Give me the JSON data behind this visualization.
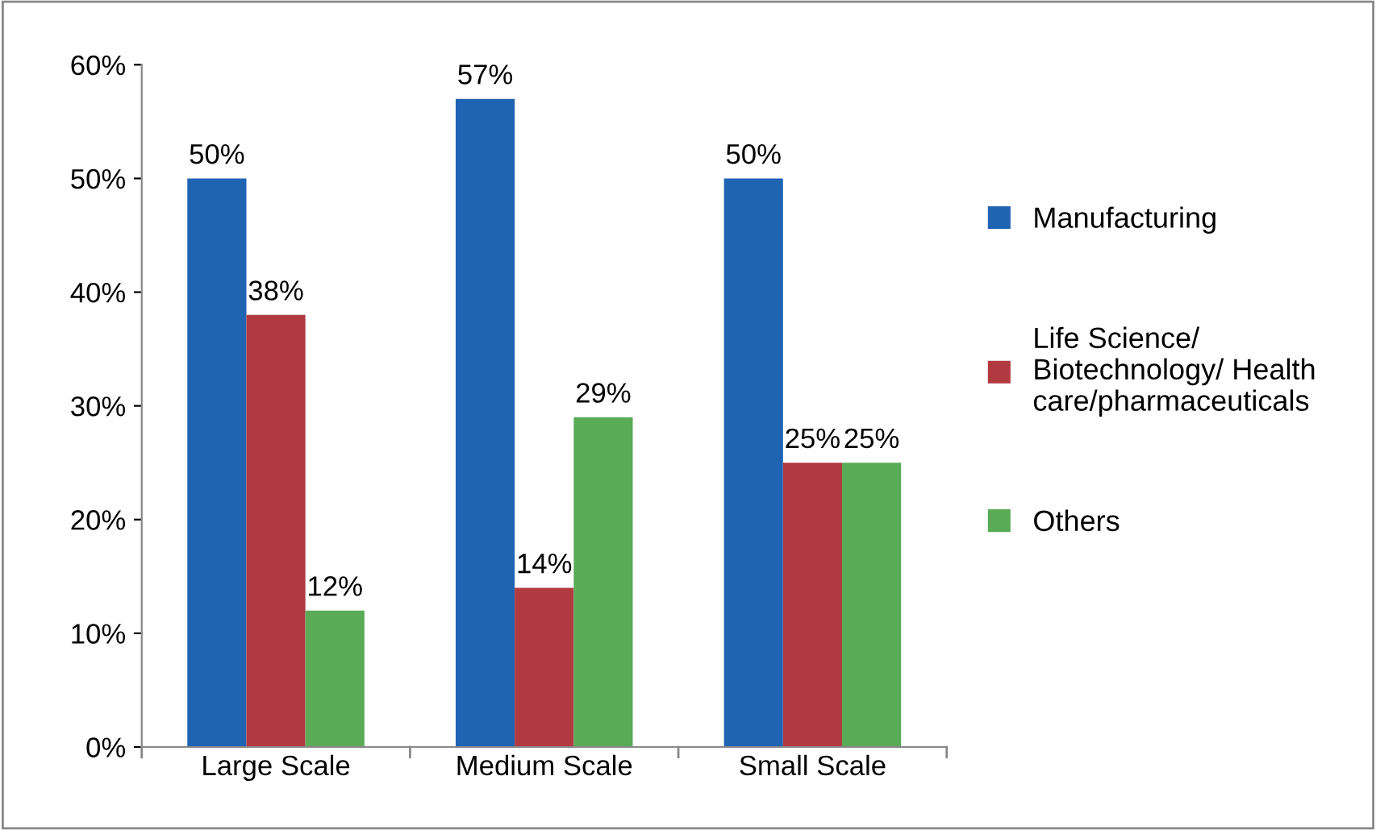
{
  "chart_data": {
    "type": "bar",
    "categories": [
      "Large Scale",
      "Medium Scale",
      "Small Scale"
    ],
    "series": [
      {
        "name": "Manufacturing",
        "color": "#1f63b3",
        "values": [
          50,
          57,
          50
        ],
        "value_labels": [
          "50%",
          "57%",
          "50%"
        ]
      },
      {
        "name": "Life Science/ Biotechnology/ Health care/pharmaceuticals",
        "color": "#b13a41",
        "values": [
          38,
          14,
          25
        ],
        "value_labels": [
          "38%",
          "14%",
          "25%"
        ]
      },
      {
        "name": "Others",
        "color": "#5aab56",
        "values": [
          12,
          29,
          25
        ],
        "value_labels": [
          "12%",
          "29%",
          "25%"
        ]
      }
    ],
    "ylim": [
      0,
      60
    ],
    "yticks": [
      {
        "value": 0,
        "label": "0%"
      },
      {
        "value": 10,
        "label": "10%"
      },
      {
        "value": 20,
        "label": "20%"
      },
      {
        "value": 30,
        "label": "30%"
      },
      {
        "value": 40,
        "label": "40%"
      },
      {
        "value": 50,
        "label": "50%"
      },
      {
        "value": 60,
        "label": "60%"
      }
    ],
    "grid": false,
    "legend": "right"
  }
}
